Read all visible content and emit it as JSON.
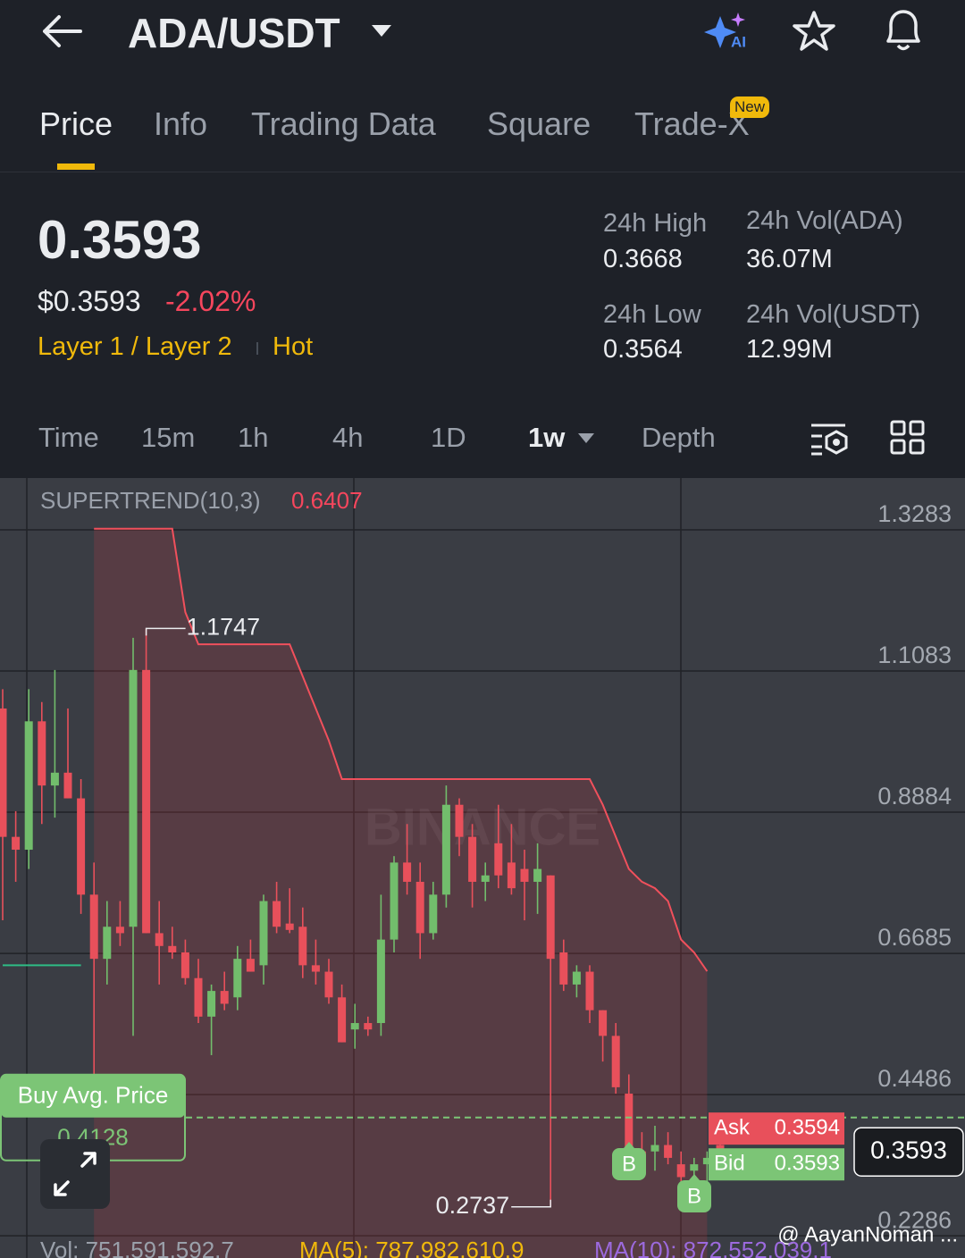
{
  "header": {
    "pair": "ADA/USDT"
  },
  "tabs": [
    "Price",
    "Info",
    "Trading Data",
    "Square",
    "Trade-X"
  ],
  "new_badge": "New",
  "price": {
    "last": "0.3593",
    "usd": "$0.3593",
    "change": "-2.02%",
    "tags": [
      "Layer 1 / Layer 2",
      "Hot"
    ]
  },
  "stats": [
    {
      "label": "24h High",
      "value": "0.3668"
    },
    {
      "label": "24h Vol(ADA)",
      "value": "36.07M"
    },
    {
      "label": "24h Low",
      "value": "0.3564"
    },
    {
      "label": "24h Vol(USDT)",
      "value": "12.99M"
    }
  ],
  "intervals": [
    "Time",
    "15m",
    "1h",
    "4h",
    "1D",
    "1w",
    "Depth"
  ],
  "watermark": "@ AayanNoman ...",
  "watermark_logo": "BINANCE",
  "chart_data": {
    "type": "candlestick",
    "indicator_label": "SUPERTREND(10,3)",
    "indicator_value": 0.6407,
    "ylim": [
      0.194,
      1.409
    ],
    "yticks": [
      1.3283,
      1.1083,
      0.8884,
      0.6685,
      0.4486,
      0.2286
    ],
    "grid": true,
    "up_color": "#72bd6c",
    "down_color": "#e8505b",
    "ohlc": [
      [
        1.05,
        1.08,
        0.72,
        0.85
      ],
      [
        0.85,
        0.89,
        0.78,
        0.83
      ],
      [
        0.83,
        1.08,
        0.8,
        1.03
      ],
      [
        1.03,
        1.06,
        0.87,
        0.93
      ],
      [
        0.93,
        1.11,
        0.88,
        0.95
      ],
      [
        0.95,
        1.05,
        0.91,
        0.91
      ],
      [
        0.91,
        0.94,
        0.73,
        0.76
      ],
      [
        0.76,
        0.81,
        0.47,
        0.66
      ],
      [
        0.66,
        0.75,
        0.62,
        0.71
      ],
      [
        0.71,
        0.75,
        0.68,
        0.7
      ],
      [
        0.71,
        1.16,
        0.54,
        1.11
      ],
      [
        1.11,
        1.1747,
        0.7,
        0.7
      ],
      [
        0.7,
        0.75,
        0.62,
        0.68
      ],
      [
        0.68,
        0.71,
        0.66,
        0.67
      ],
      [
        0.67,
        0.69,
        0.62,
        0.63
      ],
      [
        0.63,
        0.66,
        0.56,
        0.57
      ],
      [
        0.57,
        0.62,
        0.51,
        0.61
      ],
      [
        0.61,
        0.64,
        0.58,
        0.59
      ],
      [
        0.6,
        0.68,
        0.58,
        0.66
      ],
      [
        0.66,
        0.69,
        0.64,
        0.64
      ],
      [
        0.65,
        0.76,
        0.62,
        0.75
      ],
      [
        0.75,
        0.78,
        0.7,
        0.71
      ],
      [
        0.715,
        0.77,
        0.7,
        0.705
      ],
      [
        0.71,
        0.74,
        0.63,
        0.65
      ],
      [
        0.65,
        0.69,
        0.62,
        0.64
      ],
      [
        0.64,
        0.66,
        0.59,
        0.6
      ],
      [
        0.6,
        0.62,
        0.53,
        0.53
      ],
      [
        0.55,
        0.59,
        0.52,
        0.56
      ],
      [
        0.56,
        0.57,
        0.54,
        0.55
      ],
      [
        0.56,
        0.76,
        0.54,
        0.69
      ],
      [
        0.69,
        0.82,
        0.67,
        0.81
      ],
      [
        0.81,
        0.87,
        0.76,
        0.78
      ],
      [
        0.78,
        0.81,
        0.66,
        0.7
      ],
      [
        0.7,
        0.78,
        0.69,
        0.76
      ],
      [
        0.76,
        0.93,
        0.74,
        0.9
      ],
      [
        0.9,
        0.91,
        0.82,
        0.85
      ],
      [
        0.85,
        0.87,
        0.74,
        0.78
      ],
      [
        0.78,
        0.81,
        0.75,
        0.79
      ],
      [
        0.84,
        0.9,
        0.77,
        0.79
      ],
      [
        0.81,
        0.87,
        0.76,
        0.77
      ],
      [
        0.8,
        0.83,
        0.72,
        0.78
      ],
      [
        0.78,
        0.84,
        0.73,
        0.8
      ],
      [
        0.79,
        0.79,
        0.2737,
        0.66
      ],
      [
        0.67,
        0.69,
        0.61,
        0.62
      ],
      [
        0.62,
        0.65,
        0.6,
        0.64
      ],
      [
        0.64,
        0.65,
        0.56,
        0.58
      ],
      [
        0.58,
        0.58,
        0.5,
        0.54
      ],
      [
        0.54,
        0.56,
        0.45,
        0.46
      ],
      [
        0.45,
        0.48,
        0.35,
        0.36
      ],
      [
        0.36,
        0.39,
        0.34,
        0.35
      ],
      [
        0.36,
        0.4,
        0.33,
        0.37
      ],
      [
        0.37,
        0.39,
        0.34,
        0.35
      ],
      [
        0.34,
        0.36,
        0.31,
        0.32
      ],
      [
        0.33,
        0.35,
        0.3,
        0.34
      ],
      [
        0.34,
        0.36,
        0.31,
        0.35
      ],
      [
        0.37,
        0.39,
        0.35,
        0.3593
      ]
    ],
    "supertrend_down": [
      null,
      null,
      null,
      null,
      null,
      null,
      null,
      1.33,
      1.33,
      1.33,
      1.33,
      1.33,
      1.33,
      1.33,
      1.2,
      1.15,
      1.15,
      1.15,
      1.15,
      1.15,
      1.15,
      1.15,
      1.15,
      1.1,
      1.05,
      1.0,
      0.94,
      0.94,
      0.94,
      0.94,
      0.94,
      0.94,
      0.94,
      0.94,
      0.94,
      0.94,
      0.94,
      0.94,
      0.94,
      0.94,
      0.94,
      0.94,
      0.94,
      0.94,
      0.94,
      0.94,
      0.9,
      0.85,
      0.8,
      0.78,
      0.77,
      0.75,
      0.69,
      0.67,
      0.6407,
      null
    ],
    "supertrend_up": [
      0.65,
      0.65,
      0.65,
      0.65,
      0.65,
      0.65,
      0.65,
      null,
      null,
      null,
      null,
      null,
      null,
      null,
      null,
      null,
      null,
      null,
      null,
      null,
      null,
      null,
      null,
      null,
      null,
      null,
      null,
      null,
      null,
      null,
      null,
      null,
      null,
      null,
      null,
      null,
      null,
      null,
      null,
      null,
      null,
      null,
      null,
      null,
      null,
      null,
      null,
      null,
      null,
      null,
      null,
      null,
      null,
      null,
      null,
      null
    ],
    "high_label": 1.1747,
    "low_label": 0.2737,
    "buy_avg_label": "Buy Avg. Price",
    "buy_avg": 0.4128,
    "ask_label": "Ask",
    "ask": 0.3594,
    "bid_label": "Bid",
    "bid": 0.3593,
    "last_price": 0.3593,
    "buy_signal_label": "B",
    "volume_line": [
      "Vol: 751,591,592.7",
      "MA(5): 787,982,610.9",
      "MA(10): 872,552,039.1"
    ]
  }
}
